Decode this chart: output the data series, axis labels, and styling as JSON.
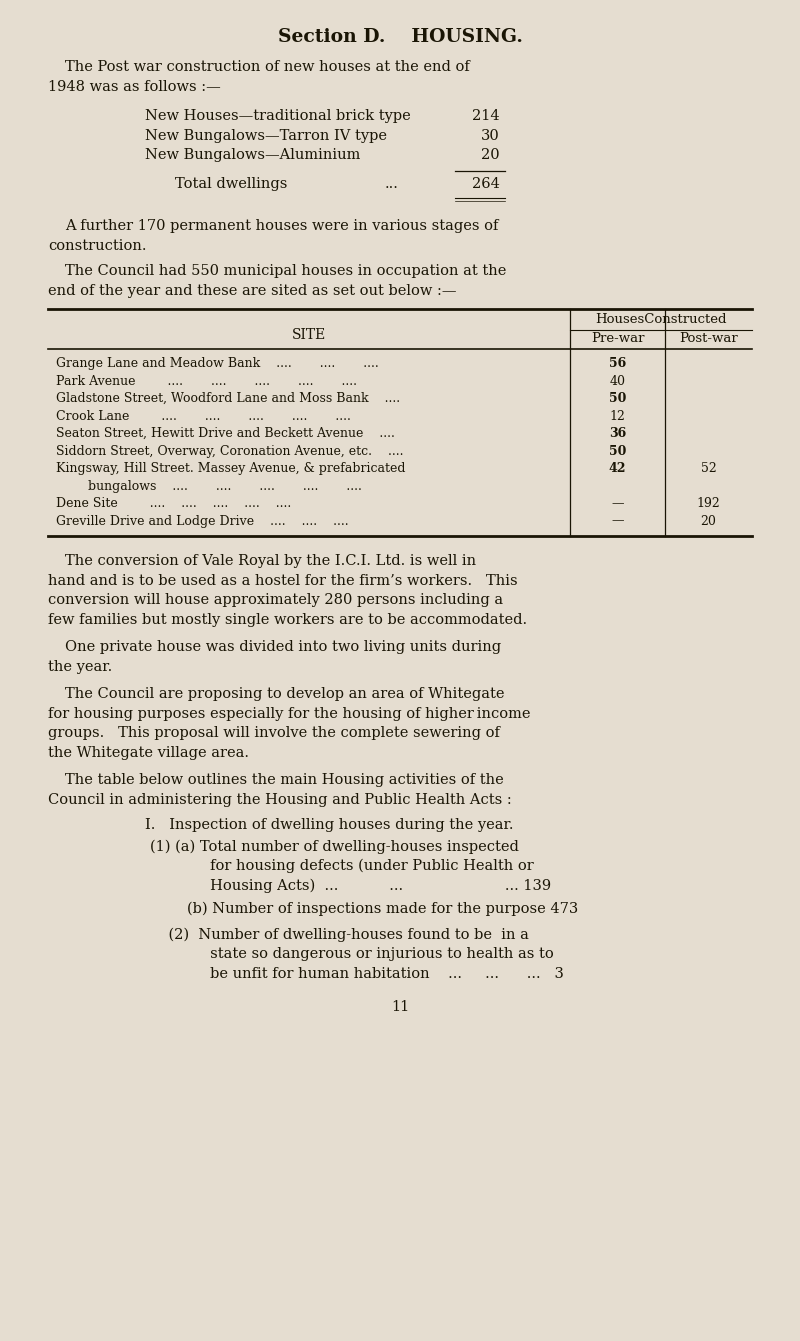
{
  "bg_color": "#e5ddd0",
  "text_color": "#1a1505",
  "page_width": 8.0,
  "page_height": 13.41,
  "title": "Section D.    HOUSING.",
  "para1_line1": "The Post war construction of new houses at the end of",
  "para1_line2": "1948 was as follows :—",
  "items": [
    [
      "New Houses—traditional brick type",
      "214"
    ],
    [
      "New Bungalows—Tarron IV type",
      "30"
    ],
    [
      "New Bungalows—Aluminium",
      "20"
    ]
  ],
  "total_label": "Total dwellings",
  "total_dots": "...",
  "total_value": "264",
  "para2_line1": "A further 170 permanent houses were in various stages of",
  "para2_line2": "construction.",
  "para3_line1": "The Council had 550 municipal houses in occupation at the",
  "para3_line2": "end of the year and these are sited as set out below :—",
  "table_site_header": "SITE",
  "table_houses_header": "HousesConstructed",
  "table_prewar_header": "Pre-war",
  "table_postwar_header": "Post-war",
  "table_rows": [
    [
      "Grange Lane and Meadow Bank    ....       ....       ....",
      "56",
      ""
    ],
    [
      "Park Avenue        ....       ....       ....       ....       ....",
      "40",
      ""
    ],
    [
      "Gladstone Street, Woodford Lane and Moss Bank    ....",
      "50",
      ""
    ],
    [
      "Crook Lane        ....       ....       ....       ....       ....",
      "12",
      ""
    ],
    [
      "Seaton Street, Hewitt Drive and Beckett Avenue    ....",
      "36",
      ""
    ],
    [
      "Siddorn Street, Overway, Coronation Avenue, etc.    ....",
      "50",
      ""
    ],
    [
      "Kingsway, Hill Street. Massey Avenue, & prefabricated",
      "42",
      "52"
    ],
    [
      "        bungalows    ....       ....       ....       ....       ....",
      "",
      ""
    ],
    [
      "Dene Site        ....    ....    ....    ....    ....",
      "—",
      "192"
    ],
    [
      "Greville Drive and Lodge Drive    ....    ....    ....",
      "—",
      "20"
    ]
  ],
  "para4": [
    "The conversion of Vale Royal by the I.C.I. Ltd. is well in",
    "hand and is to be used as a hostel for the firm’s workers.   This",
    "conversion will house approximately 280 persons including a",
    "few families but mostly single workers are to be accommodated."
  ],
  "para5": [
    "One private house was divided into two living units during",
    "the year."
  ],
  "para6": [
    "The Council are proposing to develop an area of Whitegate",
    "for housing purposes especially for the housing of higher income",
    "groups.   This proposal will involve the complete sewering of",
    "the Whitegate village area."
  ],
  "para7": [
    "The table below outlines the main Housing activities of the",
    "Council in administering the Housing and Public Health Acts :"
  ],
  "list_I": "I.   Inspection of dwelling houses during the year.",
  "list_1a": [
    "(1) (a) Total number of dwelling-houses inspected",
    "             for housing defects (under Public Health or",
    "             Housing Acts)  ...           ...                      ... 139"
  ],
  "list_1b": "        (b) Number of inspections made for the purpose 473",
  "list_2": [
    "    (2)  Number of dwelling-houses found to be  in a",
    "             state so dangerous or injurious to health as to",
    "             be unfit for human habitation    ...     ...      ...   3"
  ],
  "page_number": "11",
  "font_size_title": 13.5,
  "font_size_body": 10.5,
  "font_size_table": 9.0,
  "font_size_table_header": 9.5
}
